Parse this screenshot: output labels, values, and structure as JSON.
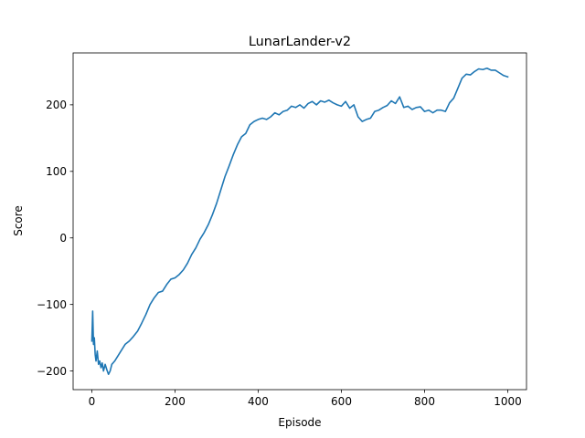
{
  "chart_data": {
    "type": "line",
    "title": "LunarLander-v2",
    "xlabel": "Episode",
    "ylabel": "Score",
    "xlim": [
      -45,
      1045
    ],
    "ylim": [
      -228,
      278
    ],
    "xticks": [
      0,
      200,
      400,
      600,
      800,
      1000
    ],
    "yticks": [
      -200,
      -100,
      0,
      100,
      200
    ],
    "ytick_labels": [
      "−200",
      "−100",
      "0",
      "100",
      "200"
    ],
    "grid": false,
    "legend": "none",
    "line_color": "#1f77b4",
    "series": [
      {
        "x": [
          0,
          2,
          4,
          6,
          8,
          10,
          13,
          16,
          19,
          22,
          25,
          28,
          32,
          36,
          40,
          44,
          48,
          55,
          62,
          70,
          80,
          90,
          100,
          110,
          120,
          130,
          140,
          150,
          160,
          170,
          180,
          190,
          200,
          210,
          220,
          230,
          240,
          250,
          260,
          270,
          280,
          290,
          300,
          310,
          320,
          330,
          340,
          350,
          360,
          370,
          380,
          390,
          400,
          410,
          420,
          430,
          440,
          450,
          460,
          470,
          480,
          490,
          500,
          510,
          520,
          530,
          540,
          550,
          560,
          570,
          580,
          590,
          600,
          610,
          620,
          630,
          640,
          650,
          660,
          670,
          680,
          690,
          700,
          710,
          720,
          730,
          740,
          750,
          760,
          770,
          780,
          790,
          800,
          810,
          820,
          830,
          840,
          850,
          860,
          870,
          880,
          890,
          900,
          910,
          920,
          930,
          940,
          950,
          960,
          970,
          980,
          990,
          1000
        ],
        "y": [
          -155,
          -110,
          -160,
          -150,
          -175,
          -185,
          -170,
          -190,
          -185,
          -195,
          -188,
          -200,
          -190,
          -198,
          -205,
          -200,
          -190,
          -185,
          -178,
          -170,
          -160,
          -155,
          -148,
          -140,
          -128,
          -115,
          -100,
          -90,
          -82,
          -80,
          -70,
          -62,
          -60,
          -55,
          -48,
          -38,
          -25,
          -15,
          -2,
          8,
          20,
          35,
          52,
          72,
          92,
          108,
          125,
          140,
          152,
          157,
          170,
          175,
          178,
          180,
          178,
          182,
          188,
          185,
          190,
          192,
          198,
          196,
          200,
          195,
          202,
          205,
          200,
          206,
          204,
          207,
          203,
          200,
          198,
          205,
          195,
          200,
          182,
          175,
          178,
          180,
          190,
          192,
          196,
          199,
          206,
          202,
          212,
          196,
          198,
          193,
          196,
          197,
          190,
          192,
          188,
          192,
          192,
          190,
          203,
          210,
          225,
          240,
          246,
          245,
          250,
          254,
          253,
          255,
          252,
          252,
          248,
          244,
          242
        ]
      }
    ]
  }
}
